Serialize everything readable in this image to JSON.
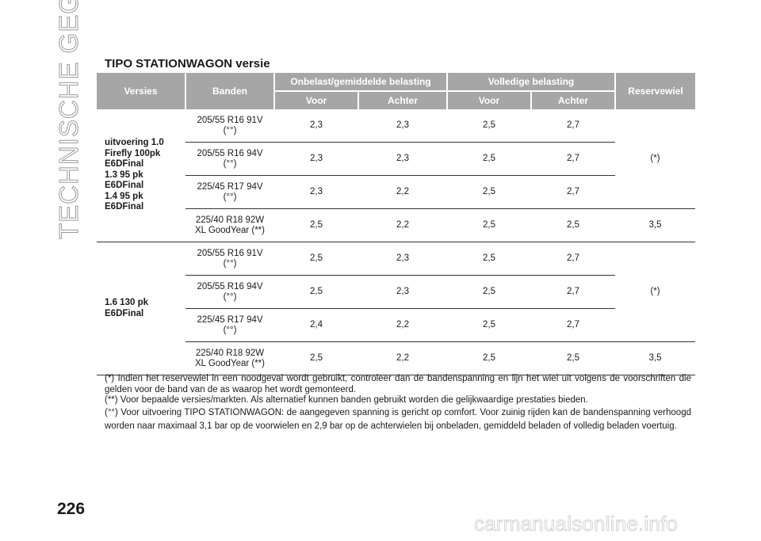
{
  "side_title": "TECHNISCHE GEGEVENS",
  "page_number": "226",
  "section_title": "TIPO STATIONWAGON versie",
  "table": {
    "headers": {
      "versies": "Versies",
      "banden": "Banden",
      "onbelast": "Onbelast/gemiddelde belasting",
      "volledig": "Volledige belasting",
      "reservewiel": "Reservewiel",
      "voor": "Voor",
      "achter": "Achter"
    },
    "groups": [
      {
        "version": "uitvoering 1.0\nFirefly 100pk\nE6DFinal\n1.3 95 pk\nE6DFinal\n1.4 95 pk\nE6DFinal",
        "spare_shared": "(*)",
        "rows": [
          {
            "tyre": "205/55 R16 91V\n(°°)",
            "v1": "2,3",
            "a1": "2,3",
            "v2": "2,5",
            "a2": "2,7"
          },
          {
            "tyre": "205/55 R16 94V\n(°°)",
            "v1": "2,3",
            "a1": "2,3",
            "v2": "2,5",
            "a2": "2,7"
          },
          {
            "tyre": "225/45 R17 94V\n(°°)",
            "v1": "2,3",
            "a1": "2,2",
            "v2": "2,5",
            "a2": "2,7"
          },
          {
            "tyre": "225/40 R18 92W\nXL GoodYear (**)",
            "v1": "2,5",
            "a1": "2,2",
            "v2": "2,5",
            "a2": "2,5",
            "spare": "3,5"
          }
        ]
      },
      {
        "version": "1.6 130 pk\nE6DFinal",
        "spare_shared": "(*)",
        "rows": [
          {
            "tyre": "205/55 R16 91V\n(°°)",
            "v1": "2,5",
            "a1": "2,3",
            "v2": "2,5",
            "a2": "2,7"
          },
          {
            "tyre": "205/55 R16 94V\n(°°)",
            "v1": "2,5",
            "a1": "2,3",
            "v2": "2,5",
            "a2": "2,7"
          },
          {
            "tyre": "225/45 R17 94V\n(°°)",
            "v1": "2,4",
            "a1": "2,2",
            "v2": "2,5",
            "a2": "2,7"
          },
          {
            "tyre": "225/40 R18 92W\nXL GoodYear (**)",
            "v1": "2,5",
            "a1": "2,2",
            "v2": "2,5",
            "a2": "2,5",
            "spare": "3,5"
          }
        ]
      }
    ]
  },
  "notes": [
    "(*) Indien het reservewiel in een noodgeval wordt gebruikt, controleer dan de bandenspanning en lijn het wiel uit volgens de voorschriften die gelden voor de band van de as waarop het wordt gemonteerd.",
    "(**) Voor bepaalde versies/markten. Als alternatief kunnen banden gebruikt worden die gelijkwaardige prestaties bieden.",
    "(°°) Voor uitvoering TIPO STATIONWAGON: de aangegeven spanning is gericht op comfort. Voor zuinig rijden kan de bandenspanning verhoogd worden naar maximaal 3,1 bar op de voorwielen en 2,9 bar op de achterwielen bij onbeladen, gemiddeld beladen of volledig beladen voertuig."
  ],
  "watermark": "carmanualsonline.info"
}
